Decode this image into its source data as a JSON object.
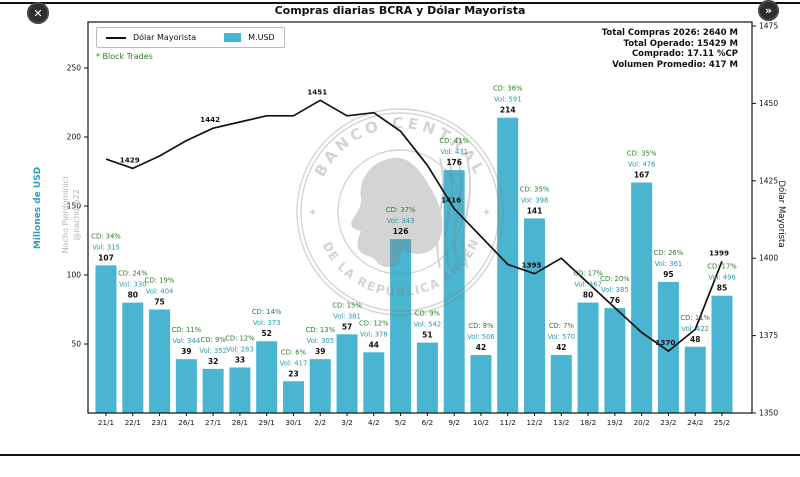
{
  "window": {
    "close_glyph": "✕",
    "forward_glyph": "»"
  },
  "header": {
    "title": "Compras diarias BCRA y Dólar Mayorista"
  },
  "legend": {
    "line_label": "Dólar Mayorista",
    "bar_label": "M.USD"
  },
  "notes": {
    "block_trades": "* Block Trades"
  },
  "stats": {
    "lines": [
      "Total Compras 2026: 2640 M",
      "Total Operado: 15429 M",
      "Comprado: 17.11 %CP",
      "Volumen Promedio: 417 M"
    ]
  },
  "watermark": {
    "author": "Nacho Pierdominici",
    "handle": "@nacho_p22",
    "seal_top": "BANCO CENTRAL",
    "seal_bottom": "DE LA REPÚBLICA ARGENTINA"
  },
  "colors": {
    "bar": "#4ab5d0",
    "line": "#111111",
    "cd_label": "#2a7e2a",
    "vol_label": "#2a98ad",
    "left_axis": "#2d9fbf",
    "watermark": "#808080"
  },
  "chart_data": {
    "type": "bar",
    "title": "Compras diarias BCRA y Dólar Mayorista",
    "categories": [
      "21/1",
      "22/1",
      "23/1",
      "26/1",
      "27/1",
      "28/1",
      "29/1",
      "30/1",
      "2/2",
      "3/2",
      "4/2",
      "5/2",
      "6/2",
      "9/2",
      "10/2",
      "11/2",
      "12/2",
      "13/2",
      "18/2",
      "19/2",
      "20/2",
      "23/2",
      "24/2",
      "25/2"
    ],
    "series": [
      {
        "name": "M.USD",
        "type": "bar",
        "axis": "left",
        "values": [
          107,
          80,
          75,
          39,
          32,
          33,
          52,
          23,
          39,
          57,
          44,
          126,
          51,
          176,
          42,
          214,
          141,
          42,
          80,
          76,
          167,
          95,
          48,
          85
        ]
      },
      {
        "name": "Dólar Mayorista",
        "type": "line",
        "axis": "right",
        "values": [
          1432,
          1429,
          1433,
          1438,
          1442,
          1444,
          1446,
          1446,
          1451,
          1446,
          1447,
          1441,
          1430,
          1416,
          1407,
          1398,
          1395,
          1400,
          1392,
          1384,
          1376,
          1370,
          1377,
          1399
        ]
      }
    ],
    "bar_annotations": [
      {
        "cd": "CD: 34%",
        "vol": "Vol: 315"
      },
      {
        "cd": "CD: 24%",
        "vol": "Vol: 330"
      },
      {
        "cd": "CD: 19%",
        "vol": "Vol: 404"
      },
      {
        "cd": "CD: 11%",
        "vol": "Vol: 344"
      },
      {
        "cd": "CD: 9%",
        "vol": "Vol: 352"
      },
      {
        "cd": "CD: 12%",
        "vol": "Vol: 283"
      },
      {
        "cd": "CD: 14%",
        "vol": "Vol: 373"
      },
      {
        "cd": "CD: 6%",
        "vol": "Vol: 417"
      },
      {
        "cd": "CD: 13%",
        "vol": "Vol: 305"
      },
      {
        "cd": "CD: 15%",
        "vol": "Vol: 381"
      },
      {
        "cd": "CD: 12%",
        "vol": "Vol: 378"
      },
      {
        "cd": "CD: 37%",
        "vol": "Vol: 343"
      },
      {
        "cd": "CD: 9%",
        "vol": "Vol: 542"
      },
      {
        "cd": "CD: 41%",
        "vol": "Vol: 431"
      },
      {
        "cd": "CD: 8%",
        "vol": "Vol: 506"
      },
      {
        "cd": "CD: 36%",
        "vol": "Vol: 591"
      },
      {
        "cd": "CD: 35%",
        "vol": "Vol: 398"
      },
      {
        "cd": "CD: 7%",
        "vol": "Vol: 570"
      },
      {
        "cd": "CD: 17%",
        "vol": "Vol: 467"
      },
      {
        "cd": "CD: 20%",
        "vol": "Vol: 385"
      },
      {
        "cd": "CD: 35%",
        "vol": "Vol: 476"
      },
      {
        "cd": "CD: 26%",
        "vol": "Vol: 361"
      },
      {
        "cd": "CD: 11%",
        "vol": "Vol: 422"
      },
      {
        "cd": "CD: 17%",
        "vol": "Vol: 496"
      }
    ],
    "line_labels": [
      {
        "category": "22/1",
        "text": "1429"
      },
      {
        "category": "27/1",
        "text": "1442"
      },
      {
        "category": "2/2",
        "text": "1451"
      },
      {
        "category": "9/2",
        "text": "1416"
      },
      {
        "category": "12/2",
        "text": "1395"
      },
      {
        "category": "23/2",
        "text": "1370"
      },
      {
        "category": "25/2",
        "text": "1399"
      }
    ],
    "left_axis": {
      "label": "Millones de USD",
      "ticks": [
        50,
        100,
        150,
        200,
        250
      ],
      "range": [
        0,
        283
      ]
    },
    "right_axis": {
      "label": "Dólar Mayorista",
      "ticks": [
        1350,
        1375,
        1400,
        1425,
        1450,
        1475
      ],
      "range": [
        1350,
        1475
      ]
    },
    "grid": false,
    "legend_position": "top-left"
  }
}
